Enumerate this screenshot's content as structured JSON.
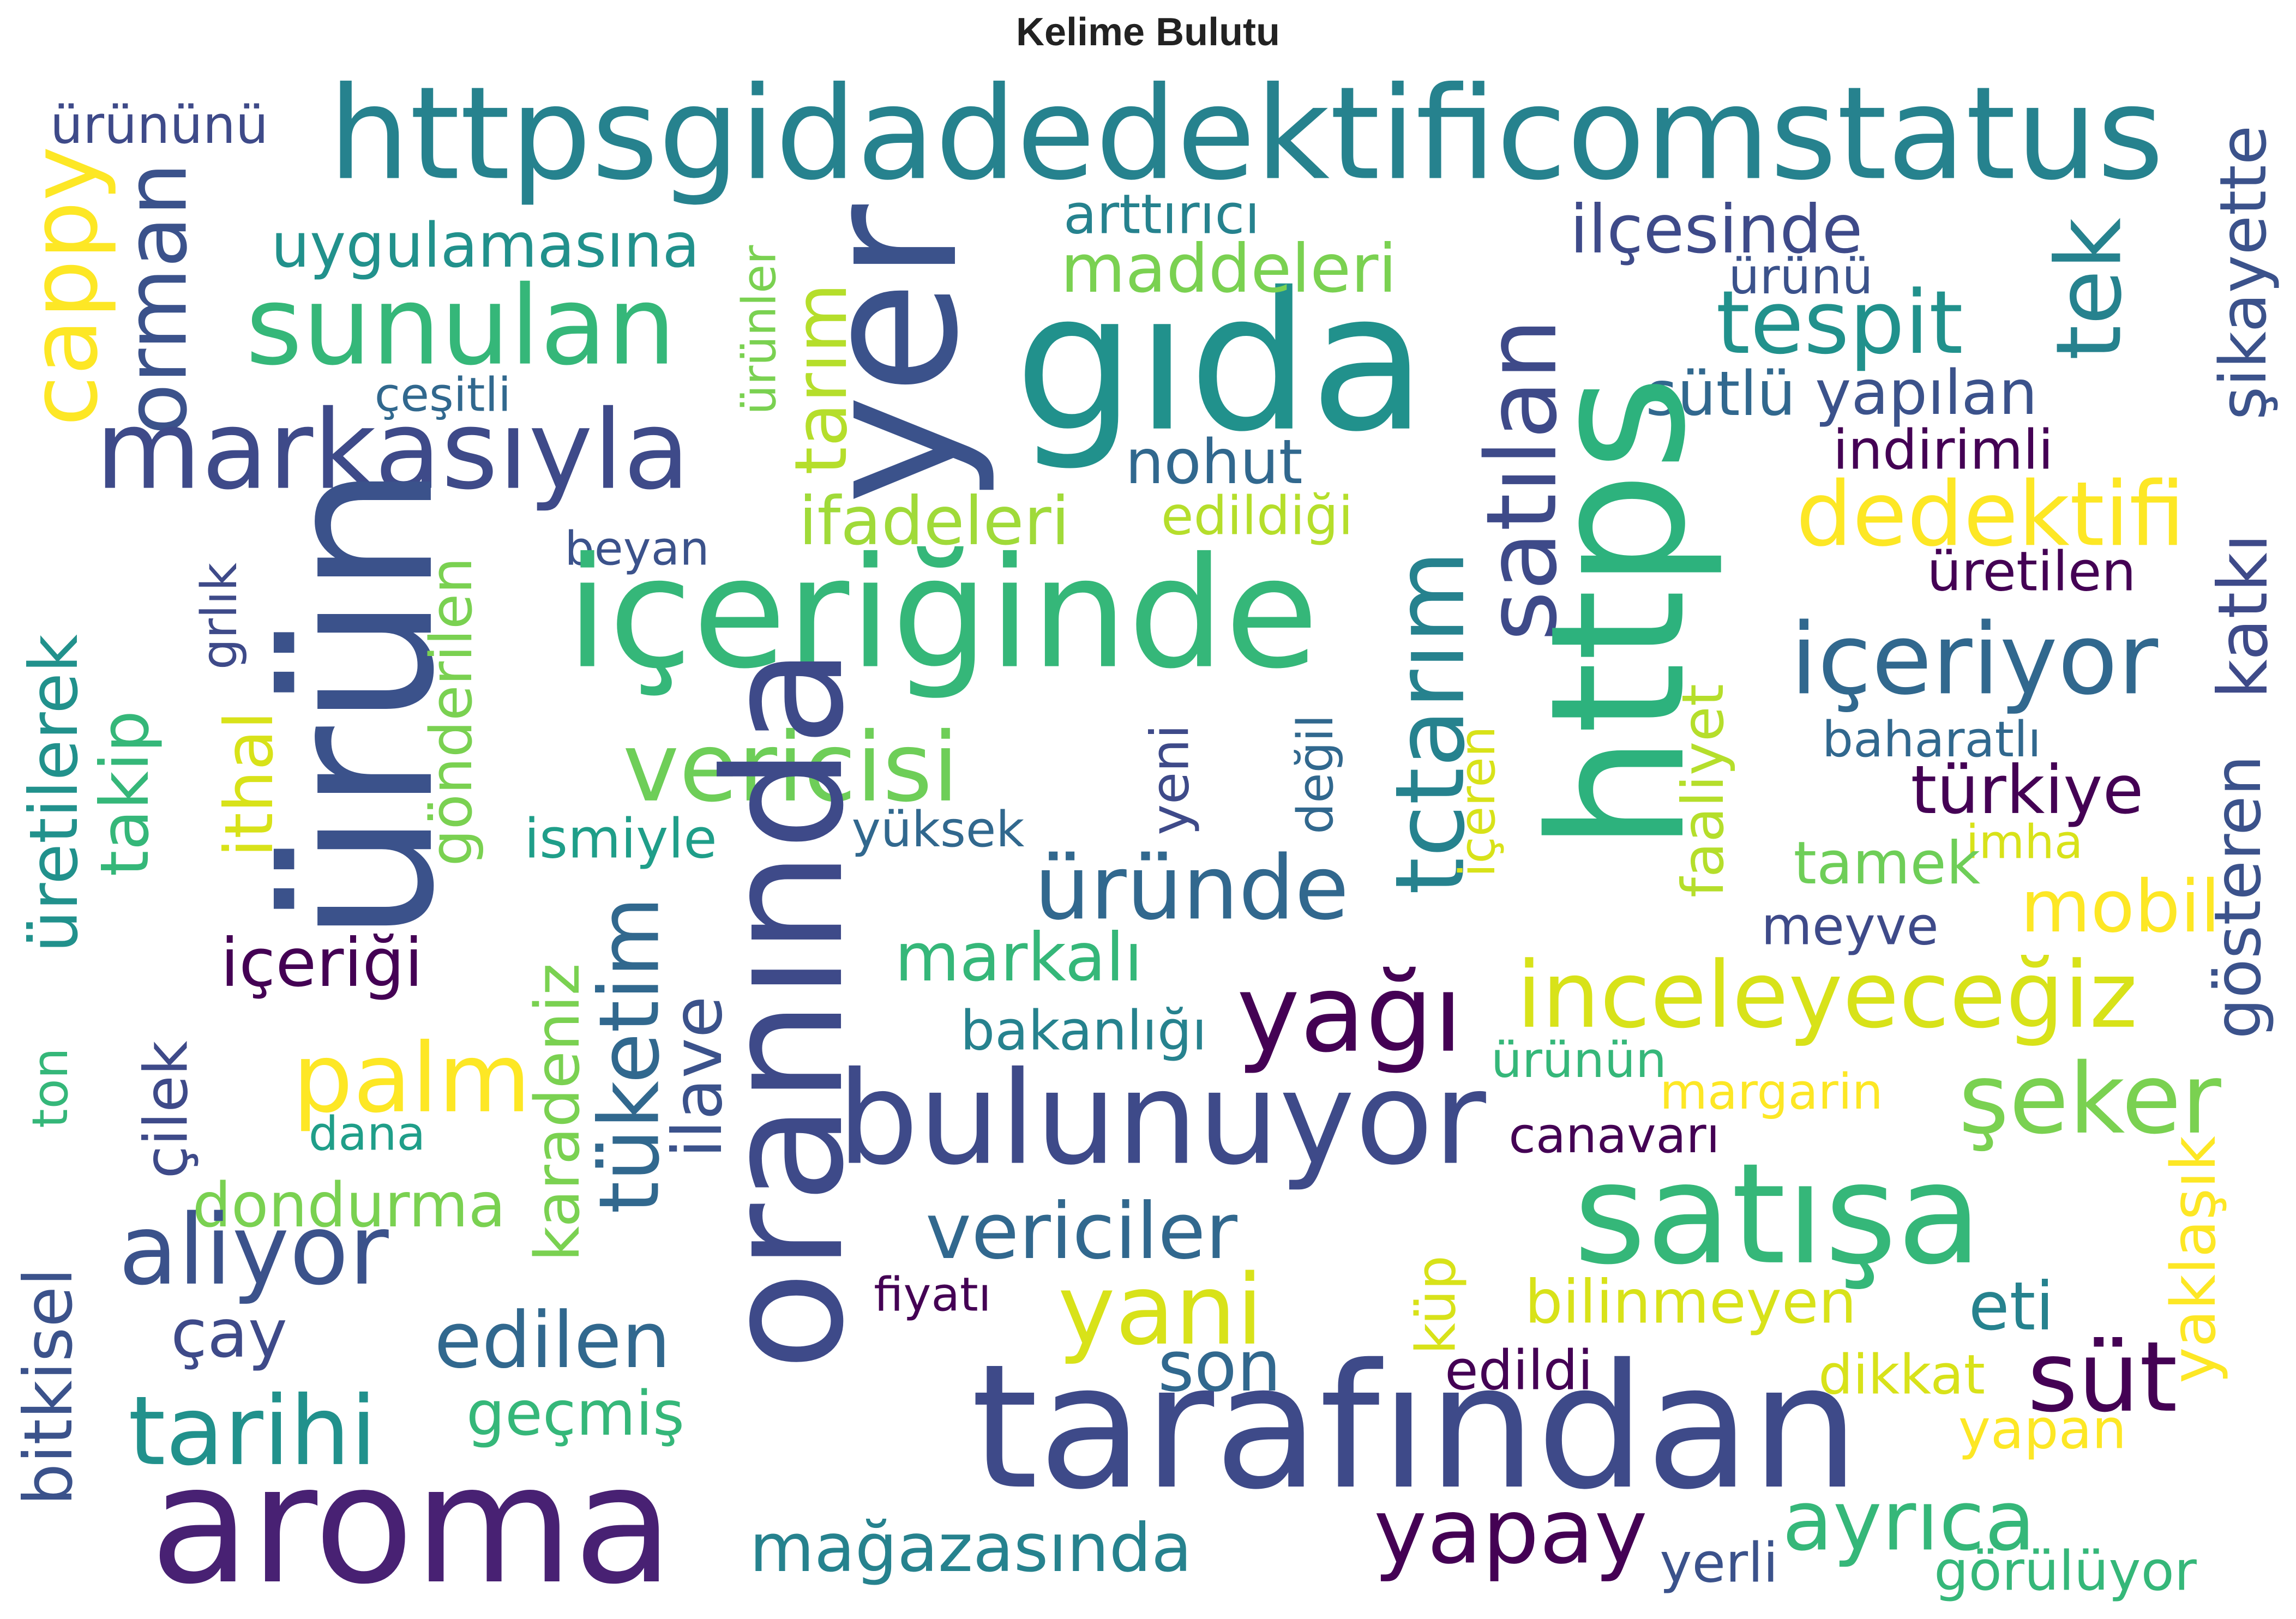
{
  "title": "Kelime Bulutu",
  "words": [
    {
      "text": "httpsgidadedektificomstatus",
      "color": "#26828e"
    },
    {
      "text": "ürününü",
      "color": "#3e4a89"
    },
    {
      "text": "cappy",
      "color": "#fde725"
    },
    {
      "text": "orman",
      "color": "#3b528b"
    },
    {
      "text": "uygulamasına",
      "color": "#21918c"
    },
    {
      "text": "sunulan",
      "color": "#35b779"
    },
    {
      "text": "markasıyla",
      "color": "#3e4a89"
    },
    {
      "text": "çeşitli",
      "color": "#31688e"
    },
    {
      "text": "ürünler",
      "color": "#7ad151"
    },
    {
      "text": "tarım",
      "color": "#b5de2b"
    },
    {
      "text": "yer",
      "color": "#3b528b"
    },
    {
      "text": "gıda",
      "color": "#21918c"
    },
    {
      "text": "arttırıcı",
      "color": "#26828e"
    },
    {
      "text": "maddeleri",
      "color": "#7ad151"
    },
    {
      "text": "ilçesinde",
      "color": "#3e4a89"
    },
    {
      "text": "ürünü",
      "color": "#3b528b"
    },
    {
      "text": "tespit",
      "color": "#21918c"
    },
    {
      "text": "tek",
      "color": "#26828e"
    },
    {
      "text": "şikayette",
      "color": "#3b528b"
    },
    {
      "text": "sütlü",
      "color": "#31688e"
    },
    {
      "text": "yapılan",
      "color": "#3b528b"
    },
    {
      "text": "indirimli",
      "color": "#440154"
    },
    {
      "text": "nohut",
      "color": "#31688e"
    },
    {
      "text": "satılan",
      "color": "#3e4a89"
    },
    {
      "text": "https",
      "color": "#2db27d"
    },
    {
      "text": "dedektifi",
      "color": "#fde725"
    },
    {
      "text": "katkı",
      "color": "#3e4a89"
    },
    {
      "text": "ifadeleri",
      "color": "#a0da39"
    },
    {
      "text": "edildiği",
      "color": "#b5de2b"
    },
    {
      "text": "ürün",
      "color": "#3b528b"
    },
    {
      "text": "beyan",
      "color": "#3b528b"
    },
    {
      "text": "grlık",
      "color": "#3e4a89"
    },
    {
      "text": "içeriğinde",
      "color": "#35b779"
    },
    {
      "text": "üretilen",
      "color": "#440154"
    },
    {
      "text": "içeriyor",
      "color": "#31688e"
    },
    {
      "text": "tctarım",
      "color": "#26828e"
    },
    {
      "text": "üretilerek",
      "color": "#21918c"
    },
    {
      "text": "takip",
      "color": "#35b779"
    },
    {
      "text": "ithal",
      "color": "#d8e219"
    },
    {
      "text": "gönderilen",
      "color": "#7ad151"
    },
    {
      "text": "vericisi",
      "color": "#6ece58"
    },
    {
      "text": "faaliyet",
      "color": "#b5de2b"
    },
    {
      "text": "baharatlı",
      "color": "#31688e"
    },
    {
      "text": "değil",
      "color": "#31688e"
    },
    {
      "text": "içeren",
      "color": "#d8e219"
    },
    {
      "text": "yeni",
      "color": "#3e4a89"
    },
    {
      "text": "türkiye",
      "color": "#440154"
    },
    {
      "text": "gösteren",
      "color": "#3b528b"
    },
    {
      "text": "ismiyle",
      "color": "#1f9e89"
    },
    {
      "text": "yüksek",
      "color": "#31688e"
    },
    {
      "text": "imha",
      "color": "#d8e219"
    },
    {
      "text": "tamek",
      "color": "#6ece58"
    },
    {
      "text": "mobil",
      "color": "#fde725"
    },
    {
      "text": "oranında",
      "color": "#3e4a89"
    },
    {
      "text": "üründe",
      "color": "#31688e"
    },
    {
      "text": "meyve",
      "color": "#3e4a89"
    },
    {
      "text": "içeriği",
      "color": "#440154"
    },
    {
      "text": "markalı",
      "color": "#35b779"
    },
    {
      "text": "inceleyeceğiz",
      "color": "#d8e219"
    },
    {
      "text": "yağı",
      "color": "#440154"
    },
    {
      "text": "tüketim",
      "color": "#31688e"
    },
    {
      "text": "ilave",
      "color": "#3b528b"
    },
    {
      "text": "bakanlığı",
      "color": "#26828e"
    },
    {
      "text": "karadeniz",
      "color": "#7ad151"
    },
    {
      "text": "palm",
      "color": "#fde725"
    },
    {
      "text": "çilek",
      "color": "#3e4a89"
    },
    {
      "text": "ton",
      "color": "#35b779"
    },
    {
      "text": "ürünün",
      "color": "#35b779"
    },
    {
      "text": "margarin",
      "color": "#fde725"
    },
    {
      "text": "şeker",
      "color": "#7ad151"
    },
    {
      "text": "dana",
      "color": "#1f9e89"
    },
    {
      "text": "bulunuyor",
      "color": "#3e4a89"
    },
    {
      "text": "canavarı",
      "color": "#440154"
    },
    {
      "text": "yaklaşık",
      "color": "#fde725"
    },
    {
      "text": "dondurma",
      "color": "#7ad151"
    },
    {
      "text": "satışa",
      "color": "#35b779"
    },
    {
      "text": "aliyor",
      "color": "#3b528b"
    },
    {
      "text": "vericiler",
      "color": "#31688e"
    },
    {
      "text": "bitkisel",
      "color": "#3b528b"
    },
    {
      "text": "küp",
      "color": "#d8e219"
    },
    {
      "text": "fiyatı",
      "color": "#440154"
    },
    {
      "text": "yani",
      "color": "#d8e219"
    },
    {
      "text": "bilinmeyen",
      "color": "#d8e219"
    },
    {
      "text": "eti",
      "color": "#26828e"
    },
    {
      "text": "çay",
      "color": "#3e4a89"
    },
    {
      "text": "edilen",
      "color": "#31688e"
    },
    {
      "text": "son",
      "color": "#31688e"
    },
    {
      "text": "edildi",
      "color": "#440154"
    },
    {
      "text": "süt",
      "color": "#440154"
    },
    {
      "text": "dikkat",
      "color": "#d8e219"
    },
    {
      "text": "geçmiş",
      "color": "#35b779"
    },
    {
      "text": "tarihi",
      "color": "#21918c"
    },
    {
      "text": "tarafından",
      "color": "#3e4a89"
    },
    {
      "text": "yapan",
      "color": "#fde725"
    },
    {
      "text": "aroma",
      "color": "#482173"
    },
    {
      "text": "ayrıca",
      "color": "#35b779"
    },
    {
      "text": "mağazasında",
      "color": "#26828e"
    },
    {
      "text": "yapay",
      "color": "#440154"
    },
    {
      "text": "yerli",
      "color": "#3b528b"
    },
    {
      "text": "görülüyor",
      "color": "#35b779"
    }
  ]
}
